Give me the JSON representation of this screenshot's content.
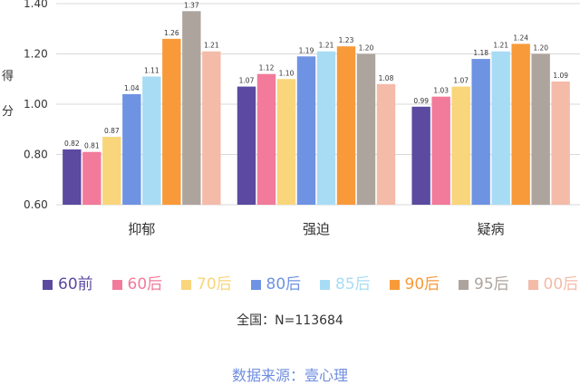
{
  "chart_data": {
    "type": "bar",
    "ylabel": "得分",
    "ylim": [
      0.6,
      1.4
    ],
    "yticks": [
      "0.60",
      "0.80",
      "1.00",
      "1.20",
      "1.40"
    ],
    "grid": true,
    "legend_position": "bottom",
    "categories": [
      "抑郁",
      "强迫",
      "疑病"
    ],
    "series": [
      {
        "name": "60前",
        "color": "#5b4aa0",
        "values": [
          0.82,
          1.07,
          0.99
        ]
      },
      {
        "name": "60后",
        "color": "#f27a9b",
        "values": [
          0.81,
          1.12,
          1.03
        ]
      },
      {
        "name": "70后",
        "color": "#f9d57b",
        "values": [
          0.87,
          1.1,
          1.07
        ]
      },
      {
        "name": "80后",
        "color": "#6f93e3",
        "values": [
          1.04,
          1.19,
          1.18
        ]
      },
      {
        "name": "85后",
        "color": "#a8dcf5",
        "values": [
          1.11,
          1.21,
          1.21
        ]
      },
      {
        "name": "90后",
        "color": "#f89a3a",
        "values": [
          1.26,
          1.23,
          1.24
        ]
      },
      {
        "name": "95后",
        "color": "#ada49e",
        "values": [
          1.37,
          1.2,
          1.2
        ]
      },
      {
        "name": "00后",
        "color": "#f4bba8",
        "values": [
          1.21,
          1.08,
          1.09
        ]
      }
    ]
  },
  "sample_note": "全国：N=113684",
  "source_note": "数据来源：壹心理"
}
